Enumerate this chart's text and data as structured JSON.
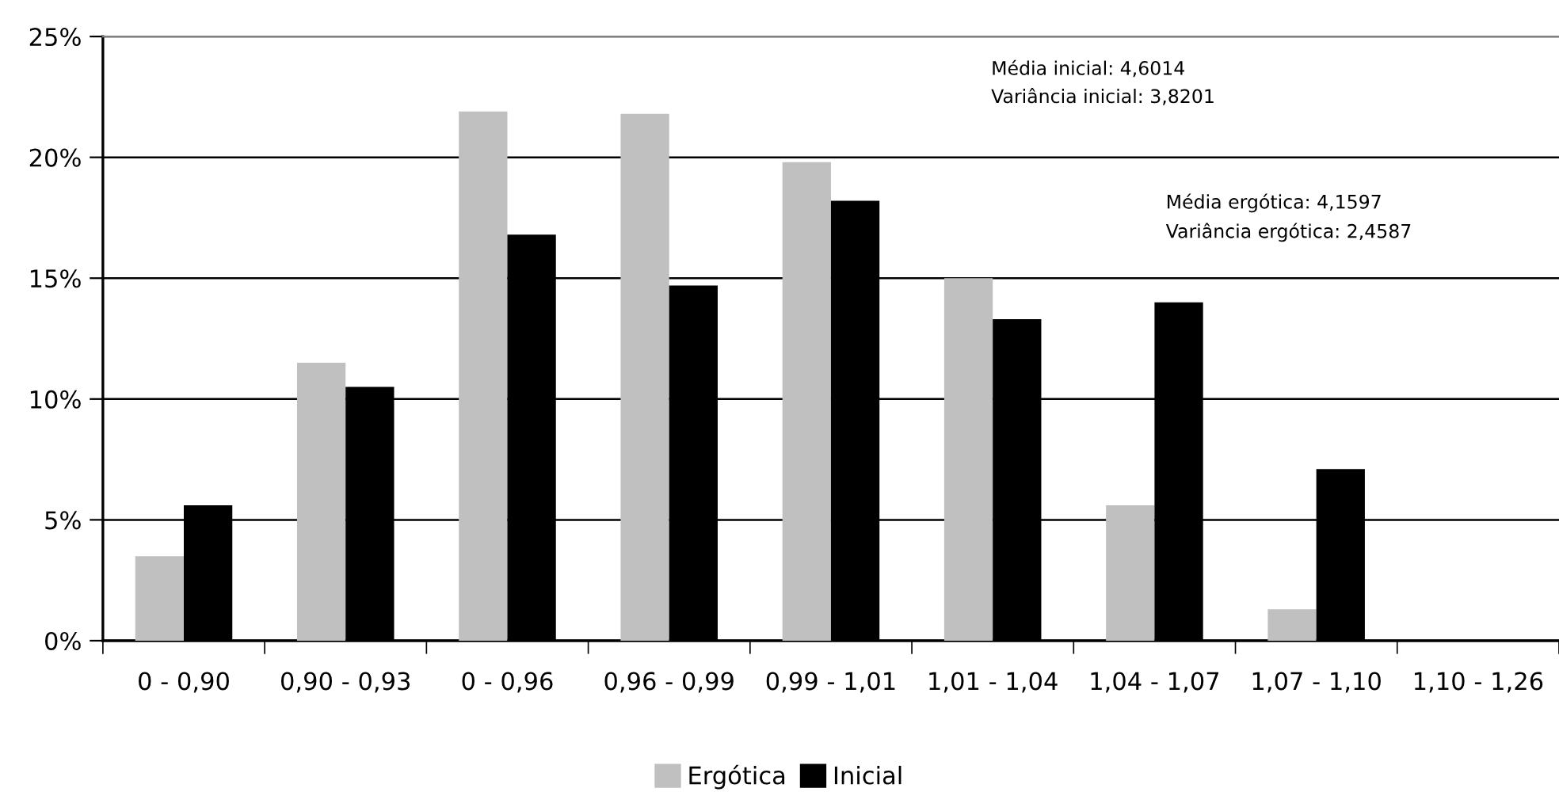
{
  "chart_data": {
    "type": "bar",
    "categories": [
      "0 - 0,90",
      "0,90 - 0,93",
      "0 - 0,96",
      "0,96 - 0,99",
      "0,99 - 1,01",
      "1,01 - 1,04",
      "1,04 - 1,07",
      "1,07 - 1,10",
      "1,10 - 1,26"
    ],
    "series": [
      {
        "name": "Ergótica",
        "color": "#c0c0c0",
        "values": [
          3.5,
          11.5,
          21.9,
          21.8,
          19.8,
          15.0,
          5.6,
          1.3,
          0
        ]
      },
      {
        "name": "Inicial",
        "color": "#000000",
        "values": [
          5.6,
          10.5,
          16.8,
          14.7,
          18.2,
          13.3,
          14.0,
          7.1,
          0
        ]
      }
    ],
    "ylim": [
      0,
      25
    ],
    "yticks": [
      {
        "value": 0,
        "label": "0%"
      },
      {
        "value": 5,
        "label": "5%"
      },
      {
        "value": 10,
        "label": "10%"
      },
      {
        "value": 15,
        "label": "15%"
      },
      {
        "value": 20,
        "label": "20%"
      },
      {
        "value": 25,
        "label": "25%"
      }
    ],
    "grid": "y",
    "legend": "bottom",
    "annotations": [
      "Média inicial: 4,6014\nVariância inicial: 3,8201",
      "Média ergótica: 4,1597\nVariância ergótica: 2,4587"
    ]
  }
}
